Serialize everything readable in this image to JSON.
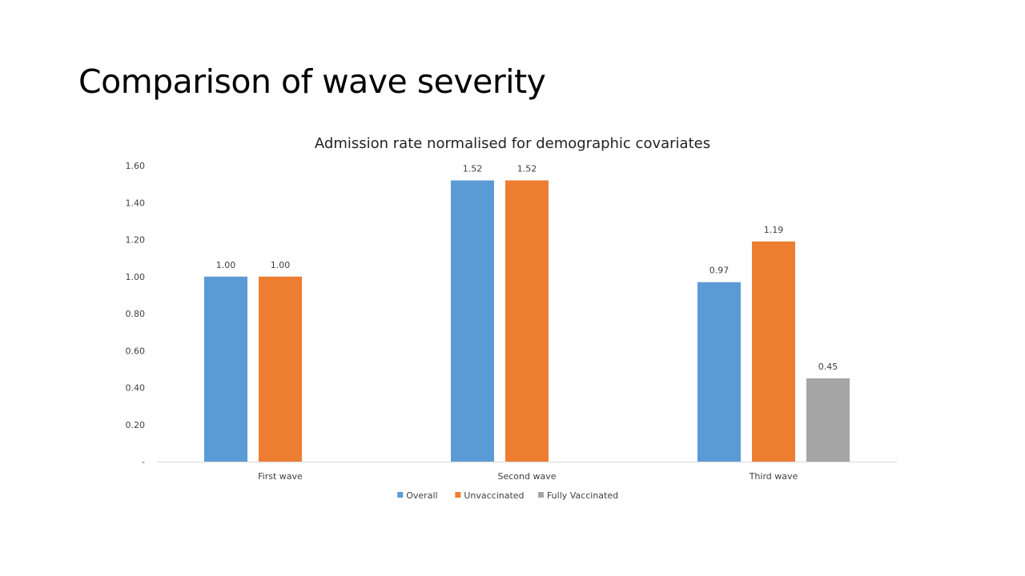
{
  "slide": {
    "title": "Comparison of wave severity"
  },
  "chart_data": {
    "type": "bar",
    "title": "Admission rate normalised for demographic covariates",
    "categories": [
      "First wave",
      "Second wave",
      "Third wave"
    ],
    "series": [
      {
        "name": "Overall",
        "color": "#5b9bd5",
        "values": [
          1.0,
          1.52,
          0.97
        ]
      },
      {
        "name": "Unvaccinated",
        "color": "#ed7d31",
        "values": [
          1.0,
          1.52,
          1.19
        ]
      },
      {
        "name": "Fully Vaccinated",
        "color": "#a5a5a5",
        "values": [
          null,
          null,
          0.45
        ]
      }
    ],
    "data_labels": [
      [
        "1.00",
        "1.52",
        "0.97"
      ],
      [
        "1.00",
        "1.52",
        "1.19"
      ],
      [
        null,
        null,
        "0.45"
      ]
    ],
    "y_ticks": [
      "-",
      "0.20",
      "0.40",
      "0.60",
      "0.80",
      "1.00",
      "1.20",
      "1.40",
      "1.60"
    ],
    "y_tick_values": [
      0,
      0.2,
      0.4,
      0.6,
      0.8,
      1.0,
      1.2,
      1.4,
      1.6
    ],
    "ylim": [
      0,
      1.6
    ],
    "grid": false,
    "legend_position": "bottom"
  }
}
